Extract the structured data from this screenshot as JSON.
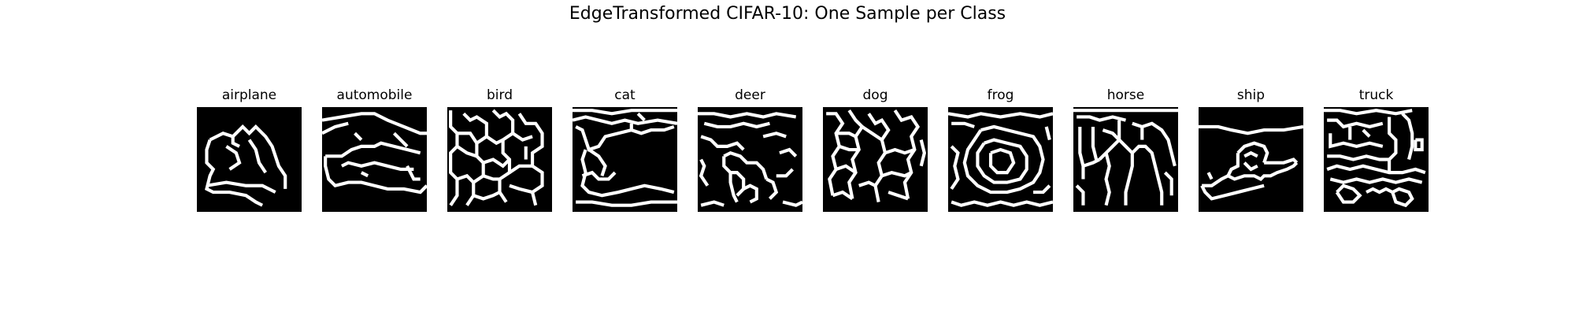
{
  "figure": {
    "title": "EdgeTransformed CIFAR-10: One Sample per Class"
  },
  "panels": [
    {
      "label": "airplane"
    },
    {
      "label": "automobile"
    },
    {
      "label": "bird"
    },
    {
      "label": "cat"
    },
    {
      "label": "deer"
    },
    {
      "label": "dog"
    },
    {
      "label": "frog"
    },
    {
      "label": "horse"
    },
    {
      "label": "ship"
    },
    {
      "label": "truck"
    }
  ],
  "colors": {
    "image_background": "#000000",
    "edge_stroke": "#ffffff"
  }
}
